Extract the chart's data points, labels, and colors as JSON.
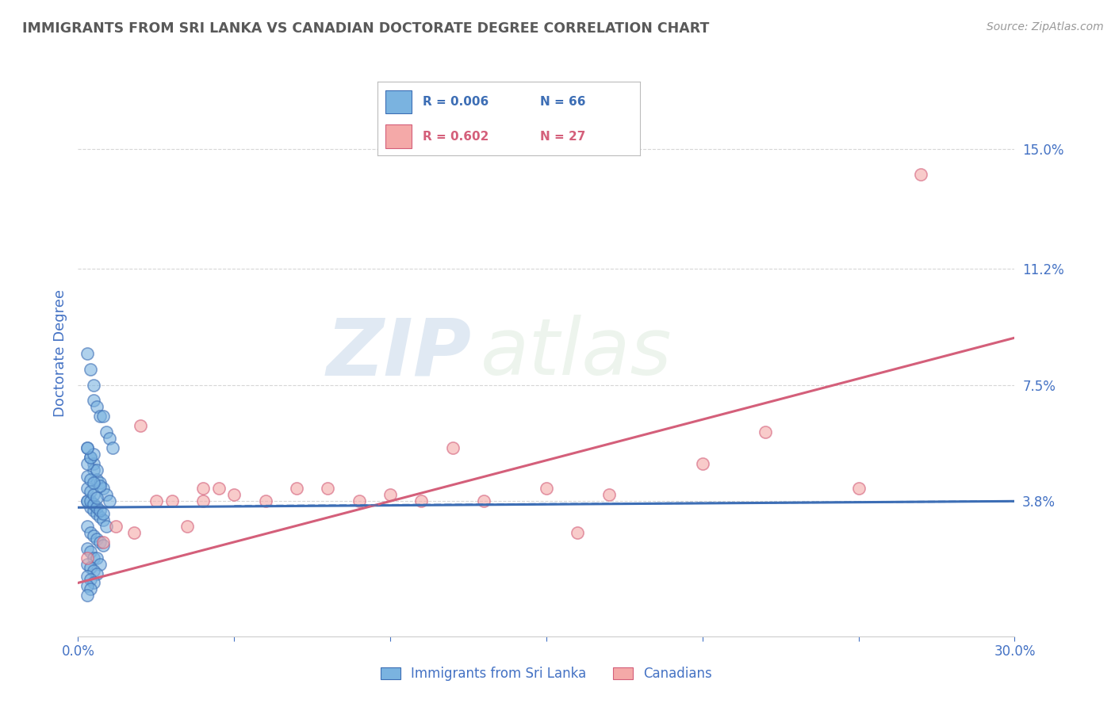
{
  "title": "IMMIGRANTS FROM SRI LANKA VS CANADIAN DOCTORATE DEGREE CORRELATION CHART",
  "source": "Source: ZipAtlas.com",
  "ylabel": "Doctorate Degree",
  "xlim": [
    0.0,
    0.3
  ],
  "ylim": [
    -0.005,
    0.175
  ],
  "xticks": [
    0.0,
    0.05,
    0.1,
    0.15,
    0.2,
    0.25,
    0.3
  ],
  "xtick_labels": [
    "0.0%",
    "",
    "",
    "",
    "",
    "",
    "30.0%"
  ],
  "ytick_labels": [
    "3.8%",
    "7.5%",
    "11.2%",
    "15.0%"
  ],
  "yticks": [
    0.038,
    0.075,
    0.112,
    0.15
  ],
  "legend_blue_label": "Immigrants from Sri Lanka",
  "legend_pink_label": "Canadians",
  "R_blue": "R = 0.006",
  "N_blue": "N = 66",
  "R_pink": "R = 0.602",
  "N_pink": "N = 27",
  "blue_color": "#7ab3e0",
  "pink_color": "#f4a9a8",
  "trendline_blue_color": "#3d6eb5",
  "trendline_pink_color": "#d45f7a",
  "watermark_zip": "ZIP",
  "watermark_atlas": "atlas",
  "blue_scatter_x": [
    0.003,
    0.004,
    0.005,
    0.005,
    0.006,
    0.007,
    0.008,
    0.009,
    0.01,
    0.011,
    0.003,
    0.004,
    0.005,
    0.005,
    0.006,
    0.007,
    0.008,
    0.009,
    0.01,
    0.003,
    0.004,
    0.005,
    0.006,
    0.007,
    0.008,
    0.009,
    0.003,
    0.004,
    0.005,
    0.006,
    0.007,
    0.008,
    0.003,
    0.004,
    0.005,
    0.006,
    0.007,
    0.003,
    0.004,
    0.005,
    0.006,
    0.003,
    0.004,
    0.005,
    0.003,
    0.004,
    0.003,
    0.003,
    0.004,
    0.005,
    0.006,
    0.007,
    0.008,
    0.003,
    0.004,
    0.005,
    0.006,
    0.007,
    0.003,
    0.004,
    0.005,
    0.006,
    0.003,
    0.004,
    0.005,
    0.003
  ],
  "blue_scatter_y": [
    0.085,
    0.08,
    0.075,
    0.07,
    0.068,
    0.065,
    0.065,
    0.06,
    0.058,
    0.055,
    0.055,
    0.052,
    0.05,
    0.048,
    0.045,
    0.044,
    0.042,
    0.04,
    0.038,
    0.038,
    0.036,
    0.035,
    0.034,
    0.033,
    0.032,
    0.03,
    0.03,
    0.028,
    0.027,
    0.026,
    0.025,
    0.024,
    0.023,
    0.022,
    0.02,
    0.02,
    0.018,
    0.018,
    0.017,
    0.016,
    0.015,
    0.014,
    0.013,
    0.012,
    0.011,
    0.01,
    0.008,
    0.038,
    0.038,
    0.037,
    0.036,
    0.035,
    0.034,
    0.042,
    0.041,
    0.04,
    0.039,
    0.043,
    0.046,
    0.045,
    0.044,
    0.048,
    0.05,
    0.052,
    0.053,
    0.055
  ],
  "pink_scatter_x": [
    0.003,
    0.008,
    0.012,
    0.018,
    0.025,
    0.03,
    0.035,
    0.04,
    0.045,
    0.05,
    0.06,
    0.07,
    0.08,
    0.09,
    0.1,
    0.11,
    0.13,
    0.15,
    0.17,
    0.2,
    0.22,
    0.25,
    0.27,
    0.02,
    0.04,
    0.16,
    0.12
  ],
  "pink_scatter_y": [
    0.02,
    0.025,
    0.03,
    0.028,
    0.038,
    0.038,
    0.03,
    0.038,
    0.042,
    0.04,
    0.038,
    0.042,
    0.042,
    0.038,
    0.04,
    0.038,
    0.038,
    0.042,
    0.04,
    0.05,
    0.06,
    0.042,
    0.142,
    0.062,
    0.042,
    0.028,
    0.055
  ],
  "blue_trend_x": [
    0.0,
    0.3
  ],
  "blue_trend_y": [
    0.036,
    0.038
  ],
  "pink_trend_x": [
    0.0,
    0.3
  ],
  "pink_trend_y": [
    0.012,
    0.09
  ],
  "background_color": "#ffffff",
  "grid_color": "#cccccc",
  "title_color": "#595959",
  "axis_label_color": "#4472c4",
  "tick_color": "#4472c4"
}
